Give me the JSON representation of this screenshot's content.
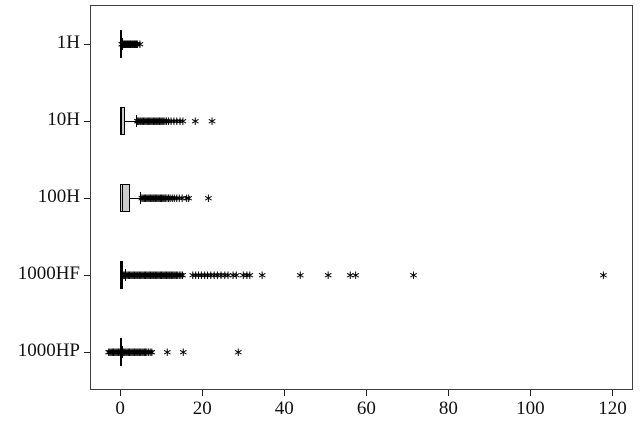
{
  "chart_data": {
    "type": "boxplot",
    "orientation": "horizontal",
    "title": "",
    "xlabel": "",
    "ylabel": "",
    "grid": false,
    "legend": null,
    "categories": [
      "1H",
      "10H",
      "100H",
      "1000HF",
      "1000HP"
    ],
    "x_ticks": [
      0,
      20,
      40,
      60,
      80,
      100,
      120
    ],
    "xlim": [
      -7.35,
      125.0
    ],
    "marker_glyph": "∗",
    "colors": {
      "box_fill": "#cccccc",
      "box_border": "#000000",
      "marker": "#000000",
      "frame": "#3f3f3f",
      "text": "#111111",
      "background": "#ffffff"
    },
    "series": [
      {
        "name": "1H",
        "q1": 0,
        "median": 0.15,
        "q3": 0.35,
        "whisker_low": 0,
        "whisker_high": 0.5,
        "outliers": [
          0.4,
          0.6,
          0.8,
          1.0,
          1.2,
          1.4,
          1.6,
          1.8,
          2.0,
          2.2,
          2.4,
          2.6,
          2.8,
          3.0,
          3.2,
          3.4,
          3.6,
          3.8,
          4.0,
          4.2,
          4.8
        ]
      },
      {
        "name": "10H",
        "q1": 0,
        "median": 0.3,
        "q3": 1.3,
        "whisker_low": 0,
        "whisker_high": 3.9,
        "outliers": [
          4.2,
          4.5,
          4.8,
          5.1,
          5.4,
          5.7,
          6.0,
          6.3,
          6.6,
          6.9,
          7.2,
          7.5,
          7.8,
          8.1,
          8.4,
          8.7,
          9.0,
          9.3,
          9.6,
          9.9,
          10.2,
          10.5,
          10.9,
          11.3,
          11.8,
          12.4,
          13.1,
          13.8,
          14.6,
          15.3,
          18.3,
          22.4
        ]
      },
      {
        "name": "100H",
        "q1": 0,
        "median": 0.5,
        "q3": 2.3,
        "whisker_low": 0,
        "whisker_high": 4.8,
        "outliers": [
          5.3,
          5.6,
          5.9,
          6.2,
          6.5,
          6.8,
          7.1,
          7.4,
          7.7,
          8.0,
          8.3,
          8.6,
          8.9,
          9.2,
          9.5,
          9.8,
          10.1,
          10.4,
          10.7,
          11.0,
          11.4,
          11.8,
          12.2,
          12.7,
          13.2,
          13.8,
          14.4,
          15.1,
          16.2,
          16.7,
          21.5
        ]
      },
      {
        "name": "1000HF",
        "q1": 0,
        "median": 0.2,
        "q3": 0.8,
        "whisker_low": 0,
        "whisker_high": 1.2,
        "outliers": [
          0.8,
          1.1,
          1.4,
          1.7,
          2.0,
          2.3,
          2.6,
          2.9,
          3.2,
          3.5,
          3.8,
          4.1,
          4.4,
          4.7,
          5.0,
          5.3,
          5.6,
          5.9,
          6.2,
          6.5,
          6.8,
          7.1,
          7.4,
          7.7,
          8.0,
          8.3,
          8.6,
          8.9,
          9.2,
          9.5,
          9.8,
          10.1,
          10.4,
          10.7,
          11.0,
          11.3,
          11.6,
          11.9,
          12.2,
          12.5,
          12.8,
          13.1,
          13.4,
          13.7,
          14.0,
          14.4,
          14.8,
          15.2,
          17.7,
          18.4,
          19.1,
          19.8,
          20.6,
          21.3,
          22.1,
          22.9,
          23.7,
          24.6,
          25.5,
          26.3,
          27.5,
          28.3,
          30.0,
          30.9,
          31.6,
          34.6,
          43.9,
          50.7,
          56.1,
          57.4,
          71.5,
          117.8
        ]
      },
      {
        "name": "1000HP",
        "q1": -0.1,
        "median": 0.05,
        "q3": 0.25,
        "whisker_low": -0.1,
        "whisker_high": 0.4,
        "outliers": [
          -2.8,
          -2.5,
          -2.2,
          -1.9,
          -1.6,
          -1.3,
          -1.0,
          -0.7,
          -0.4,
          -0.1,
          0.2,
          0.5,
          0.8,
          1.1,
          1.4,
          1.7,
          2.0,
          2.3,
          2.6,
          2.9,
          3.2,
          3.5,
          3.8,
          4.1,
          4.4,
          4.7,
          5.0,
          5.3,
          5.6,
          5.9,
          6.2,
          6.5,
          6.9,
          7.3,
          7.7,
          11.5,
          15.4,
          28.8
        ]
      }
    ]
  }
}
